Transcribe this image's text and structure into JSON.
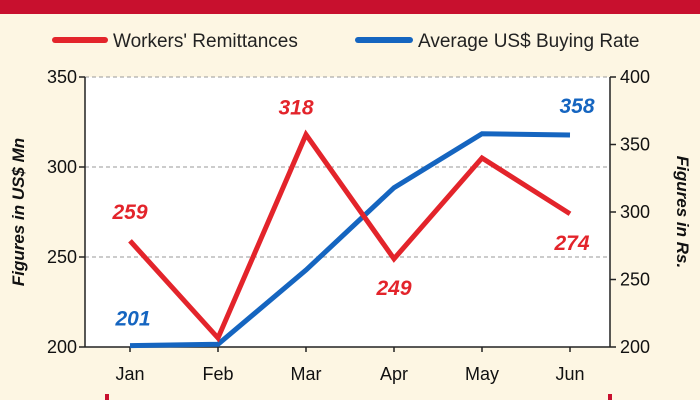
{
  "chart_data": {
    "type": "line",
    "categories": [
      "Jan",
      "Feb",
      "Mar",
      "Apr",
      "May",
      "Jun"
    ],
    "series": [
      {
        "name": "Workers' Remittances",
        "axis": "left",
        "color": "#e3242b",
        "values": [
          259,
          205,
          318,
          249,
          305,
          274
        ],
        "labels": [
          "259",
          "",
          "318",
          "249",
          "",
          "274"
        ]
      },
      {
        "name": "Average US$ Buying Rate",
        "axis": "right",
        "color": "#1565c0",
        "values": [
          201,
          202,
          257,
          318,
          358,
          357
        ],
        "labels": [
          "201",
          "",
          "",
          "",
          "358",
          ""
        ]
      }
    ],
    "y_left": {
      "label": "Figures in US$ Mn",
      "ylim": [
        200,
        350
      ],
      "ticks": [
        200,
        250,
        300,
        350
      ]
    },
    "y_right": {
      "label": "Figures in Rs.",
      "ylim": [
        200,
        400
      ],
      "ticks": [
        200,
        250,
        300,
        350,
        400
      ]
    },
    "grid": "dashed horizontal",
    "legend_position": "top"
  }
}
